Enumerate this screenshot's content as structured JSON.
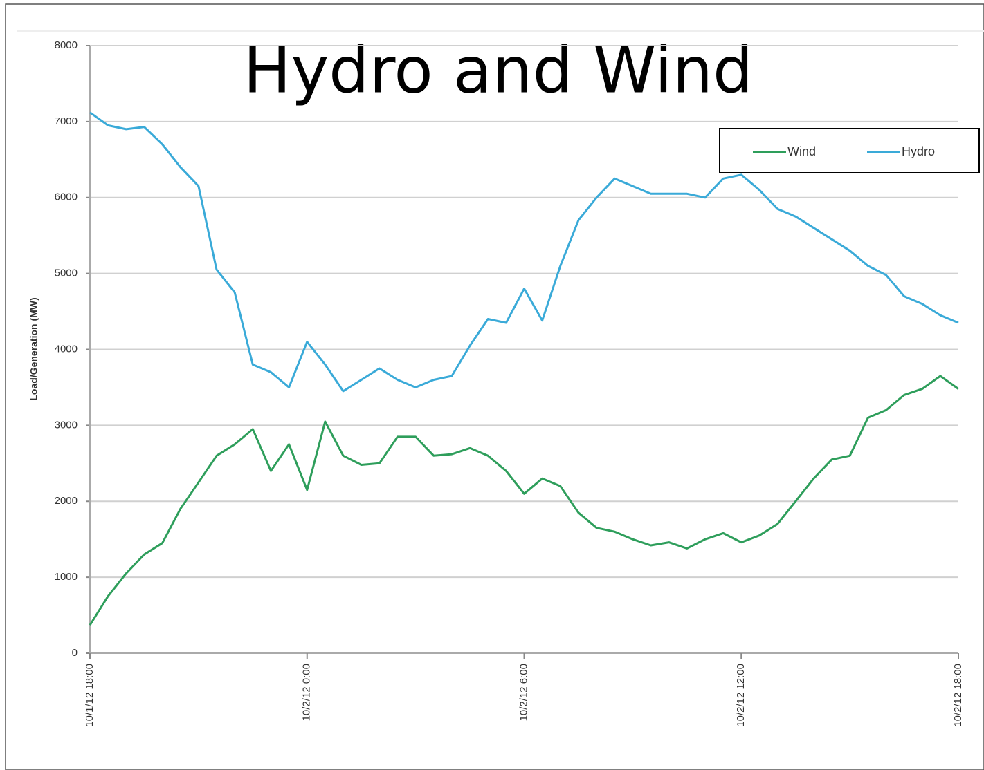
{
  "chart_data": {
    "type": "line",
    "title": "Hydro and Wind",
    "y_label": "Load/Generation (MW)",
    "x": [
      "10/1/12 18:00",
      "10/1/12 18:30",
      "10/1/12 19:00",
      "10/1/12 19:30",
      "10/1/12 20:00",
      "10/1/12 20:30",
      "10/1/12 21:00",
      "10/1/12 21:30",
      "10/1/12 22:00",
      "10/1/12 22:30",
      "10/1/12 23:00",
      "10/1/12 23:30",
      "10/2/12 0:00",
      "10/2/12 0:30",
      "10/2/12 1:00",
      "10/2/12 1:30",
      "10/2/12 2:00",
      "10/2/12 2:30",
      "10/2/12 3:00",
      "10/2/12 3:30",
      "10/2/12 4:00",
      "10/2/12 4:30",
      "10/2/12 5:00",
      "10/2/12 5:30",
      "10/2/12 6:00",
      "10/2/12 6:30",
      "10/2/12 7:00",
      "10/2/12 7:30",
      "10/2/12 8:00",
      "10/2/12 8:30",
      "10/2/12 9:00",
      "10/2/12 9:30",
      "10/2/12 10:00",
      "10/2/12 10:30",
      "10/2/12 11:00",
      "10/2/12 11:30",
      "10/2/12 12:00",
      "10/2/12 12:30",
      "10/2/12 13:00",
      "10/2/12 13:30",
      "10/2/12 14:00",
      "10/2/12 14:30",
      "10/2/12 15:00",
      "10/2/12 15:30",
      "10/2/12 16:00",
      "10/2/12 16:30",
      "10/2/12 17:00",
      "10/2/12 17:30",
      "10/2/12 18:00"
    ],
    "series": [
      {
        "name": "Wind",
        "color": "#2e9e5b",
        "values": [
          370,
          750,
          1050,
          1300,
          1450,
          1900,
          2250,
          2600,
          2750,
          2950,
          2400,
          2750,
          2150,
          3050,
          2600,
          2480,
          2500,
          2850,
          2850,
          2600,
          2620,
          2700,
          2600,
          2400,
          2100,
          2300,
          2200,
          1850,
          1650,
          1600,
          1500,
          1420,
          1460,
          1380,
          1500,
          1580,
          1460,
          1550,
          1700,
          2000,
          2300,
          2550,
          2600,
          3100,
          3200,
          3400,
          3480,
          3650,
          3480
        ]
      },
      {
        "name": "Hydro",
        "color": "#3aaad8",
        "values": [
          7120,
          6950,
          6900,
          6930,
          6700,
          6400,
          6150,
          5050,
          4750,
          3800,
          3700,
          3500,
          4100,
          3800,
          3450,
          3600,
          3750,
          3600,
          3500,
          3600,
          3650,
          4050,
          4400,
          4350,
          4800,
          4380,
          5100,
          5700,
          6000,
          6250,
          6150,
          6050,
          6050,
          6050,
          6000,
          6250,
          6300,
          6100,
          5850,
          5750,
          5600,
          5450,
          5300,
          5100,
          4980,
          4700,
          4600,
          4450,
          4350
        ]
      }
    ],
    "xlim": [
      "10/1/12 18:00",
      "10/2/12 18:00"
    ],
    "xticks": [
      "10/1/12 18:00",
      "10/2/12 0:00",
      "10/2/12 6:00",
      "10/2/12 12:00",
      "10/2/12 18:00"
    ],
    "ylim": [
      0,
      8000
    ],
    "yticks": [
      0,
      1000,
      2000,
      3000,
      4000,
      5000,
      6000,
      7000,
      8000
    ],
    "grid": true,
    "legend": "upper right"
  }
}
